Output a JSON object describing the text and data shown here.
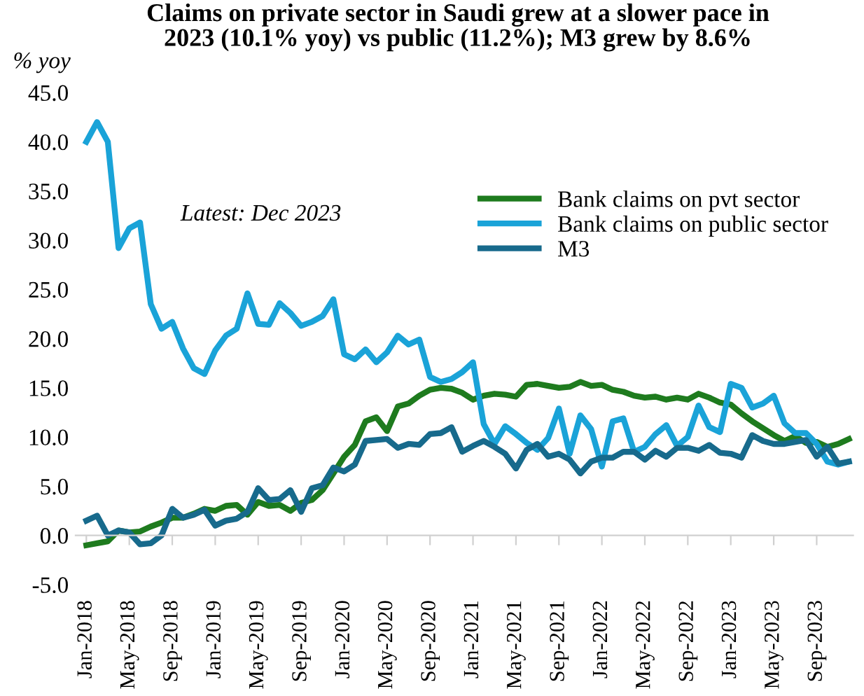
{
  "chart_data": {
    "type": "line",
    "title": "Claims on private sector in Saudi grew at a slower pace in\n2023 (10.1% yoy) vs public (11.2%); M3 grew by 8.6%",
    "ylabel": "% yoy",
    "annotations": [
      "Latest: Dec 2023"
    ],
    "categories": [
      "Jan-2018",
      null,
      null,
      null,
      "May-2018",
      null,
      null,
      null,
      "Sep-2018",
      null,
      null,
      null,
      "Jan-2019",
      null,
      null,
      null,
      "May-2019",
      null,
      null,
      null,
      "Sep-2019",
      null,
      null,
      null,
      "Jan-2020",
      null,
      null,
      null,
      "May-2020",
      null,
      null,
      null,
      "Sep-2020",
      null,
      null,
      null,
      "Jan-2021",
      null,
      null,
      null,
      "May-2021",
      null,
      null,
      null,
      "Sep-2021",
      null,
      null,
      null,
      "Jan-2022",
      null,
      null,
      null,
      "May-2022",
      null,
      null,
      null,
      "Sep-2022",
      null,
      null,
      null,
      "Jan-2023",
      null,
      null,
      null,
      "May-2023",
      null,
      null,
      null,
      "Sep-2023",
      null,
      null,
      null
    ],
    "series": [
      {
        "name": "Bank claims on pvt sector",
        "color": "#1e7b1e",
        "values": [
          -1.0,
          -0.8,
          -0.6,
          0.5,
          0.3,
          0.4,
          0.9,
          1.3,
          1.8,
          1.8,
          2.2,
          2.7,
          2.5,
          3.0,
          3.1,
          2.1,
          3.4,
          3.0,
          3.1,
          2.5,
          3.3,
          3.6,
          4.6,
          6.3,
          8.0,
          9.2,
          11.6,
          12.0,
          10.6,
          13.1,
          13.4,
          14.2,
          14.8,
          15.0,
          14.9,
          14.5,
          13.8,
          14.2,
          14.4,
          14.3,
          14.1,
          15.3,
          15.4,
          15.2,
          15.0,
          15.1,
          15.6,
          15.2,
          15.3,
          14.8,
          14.6,
          14.2,
          14.0,
          14.1,
          13.8,
          14.0,
          13.8,
          14.4,
          14.0,
          13.5,
          13.3,
          12.4,
          11.6,
          10.9,
          10.2,
          9.6,
          10.1,
          9.4,
          9.5,
          9.0,
          9.3,
          9.8
        ]
      },
      {
        "name": "Bank claims on public sector",
        "color": "#1aa3d8",
        "values": [
          40.0,
          42.0,
          40.0,
          29.2,
          31.2,
          31.8,
          23.5,
          21.0,
          21.7,
          19.0,
          17.0,
          16.4,
          18.8,
          20.3,
          21.0,
          24.6,
          21.5,
          21.4,
          23.6,
          22.6,
          21.3,
          21.7,
          22.3,
          24.0,
          18.4,
          17.9,
          18.9,
          17.6,
          18.6,
          20.3,
          19.4,
          19.9,
          16.1,
          15.6,
          15.9,
          16.6,
          17.6,
          11.3,
          9.3,
          11.1,
          10.3,
          9.4,
          8.7,
          9.9,
          12.9,
          8.3,
          12.2,
          10.8,
          7.0,
          11.6,
          11.9,
          8.5,
          9.0,
          10.3,
          11.2,
          9.1,
          10.0,
          13.2,
          11.0,
          10.5,
          15.4,
          15.0,
          13.0,
          13.4,
          14.2,
          11.4,
          10.4,
          10.4,
          9.3,
          7.5,
          7.2,
          7.5
        ]
      },
      {
        "name": "M3",
        "color": "#176a8c",
        "values": [
          1.5,
          2.0,
          0.0,
          0.5,
          0.3,
          -0.9,
          -0.8,
          0.0,
          2.7,
          1.8,
          2.1,
          2.6,
          1.0,
          1.5,
          1.7,
          2.4,
          4.8,
          3.6,
          3.7,
          4.6,
          2.4,
          4.8,
          5.1,
          6.9,
          6.5,
          7.2,
          9.6,
          9.7,
          9.8,
          8.9,
          9.3,
          9.2,
          10.3,
          10.4,
          11.0,
          8.5,
          9.1,
          9.6,
          9.0,
          8.3,
          6.8,
          8.7,
          9.3,
          8.0,
          8.3,
          7.7,
          6.3,
          7.5,
          7.9,
          7.9,
          8.5,
          8.5,
          7.7,
          8.6,
          8.0,
          8.9,
          8.9,
          8.6,
          9.2,
          8.4,
          8.3,
          7.9,
          10.2,
          9.6,
          9.3,
          9.3,
          9.5,
          9.7,
          8.0,
          9.0,
          7.3,
          7.5
        ]
      }
    ],
    "ylim": [
      -5,
      45
    ],
    "yticks": [
      {
        "value": -5,
        "label": "-5.0"
      },
      {
        "value": 0,
        "label": "0.0"
      },
      {
        "value": 5,
        "label": "5.0"
      },
      {
        "value": 10,
        "label": "10.0"
      },
      {
        "value": 15,
        "label": "15.0"
      },
      {
        "value": 20,
        "label": "20.0"
      },
      {
        "value": 25,
        "label": "25.0"
      },
      {
        "value": 30,
        "label": "30.0"
      },
      {
        "value": 35,
        "label": "35.0"
      },
      {
        "value": 40,
        "label": "40.0"
      },
      {
        "value": 45,
        "label": "45.0"
      }
    ],
    "legend": "top right",
    "marker": "none",
    "line_style": "solid"
  }
}
